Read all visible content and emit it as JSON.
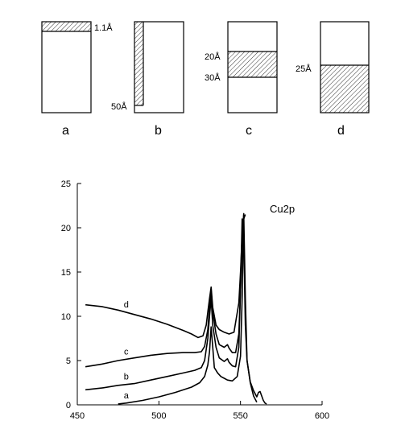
{
  "diagrams": [
    {
      "letter": "a",
      "labels": [
        "1.1Å"
      ]
    },
    {
      "letter": "b",
      "labels": [
        "50Å"
      ]
    },
    {
      "letter": "c",
      "labels": [
        "20Å",
        "30Å"
      ]
    },
    {
      "letter": "d",
      "labels": [
        "25Å"
      ]
    }
  ],
  "chart_data": {
    "type": "line",
    "title": "",
    "annotation": "Cu2p",
    "xlabel": "",
    "ylabel": "",
    "xlim": [
      450,
      600
    ],
    "ylim": [
      0,
      25
    ],
    "x_ticks": [
      450,
      500,
      550,
      600
    ],
    "y_ticks": [
      0,
      5,
      10,
      15,
      20,
      25
    ],
    "grid": false,
    "series": [
      {
        "name": "a",
        "x": [
          475,
          480,
          490,
          500,
          510,
          520,
          525,
          528,
          530,
          531,
          532,
          533,
          534,
          536,
          538,
          540,
          542,
          545,
          548,
          550,
          551,
          552,
          553,
          554,
          556,
          558,
          560,
          561,
          562,
          563,
          564,
          565,
          566
        ],
        "y": [
          0.1,
          0.2,
          0.5,
          0.9,
          1.4,
          2.0,
          2.5,
          3.2,
          4.5,
          6.0,
          8.8,
          6.5,
          4.2,
          3.6,
          3.2,
          3.0,
          2.8,
          2.7,
          3.2,
          5.5,
          12.0,
          21.6,
          12.0,
          5.0,
          2.6,
          1.6,
          0.9,
          1.4,
          1.5,
          1.0,
          0.5,
          0.2,
          0.1
        ]
      },
      {
        "name": "b",
        "x": [
          455,
          465,
          475,
          485,
          495,
          505,
          515,
          522,
          526,
          528,
          530,
          531,
          532,
          533,
          535,
          537,
          540,
          542,
          543,
          545,
          547,
          549,
          550,
          551,
          552,
          553,
          554,
          556,
          558,
          560
        ],
        "y": [
          1.7,
          1.9,
          2.2,
          2.4,
          2.8,
          3.2,
          3.6,
          3.9,
          4.2,
          5.0,
          7.5,
          10.0,
          12.0,
          9.0,
          6.5,
          5.3,
          4.9,
          5.2,
          4.8,
          4.4,
          4.3,
          6.5,
          13.0,
          21.0,
          19.0,
          9.0,
          5.0,
          2.5,
          1.0,
          0.3
        ]
      },
      {
        "name": "c",
        "x": [
          455,
          465,
          475,
          485,
          495,
          505,
          515,
          522,
          526,
          528,
          530,
          531,
          532,
          533,
          535,
          537,
          540,
          542,
          543,
          545,
          547,
          549,
          550,
          551,
          552,
          553
        ],
        "y": [
          4.3,
          4.6,
          5.0,
          5.3,
          5.6,
          5.8,
          5.9,
          5.9,
          6.0,
          6.6,
          8.5,
          11.0,
          13.0,
          10.5,
          8.0,
          6.8,
          6.5,
          6.8,
          6.4,
          5.9,
          5.9,
          8.0,
          13.0,
          18.0,
          21.0,
          21.5
        ]
      },
      {
        "name": "d",
        "x": [
          455,
          465,
          475,
          485,
          495,
          505,
          515,
          520,
          524,
          527,
          529,
          530,
          531,
          532,
          533,
          535,
          537,
          540,
          543,
          546,
          549,
          550,
          551,
          552
        ],
        "y": [
          11.3,
          11.1,
          10.7,
          10.2,
          9.7,
          9.1,
          8.4,
          8.0,
          7.6,
          7.8,
          9.0,
          10.5,
          12.0,
          13.3,
          11.0,
          9.0,
          8.5,
          8.2,
          8.0,
          8.2,
          11.5,
          15.0,
          19.0,
          21.5
        ]
      }
    ]
  }
}
